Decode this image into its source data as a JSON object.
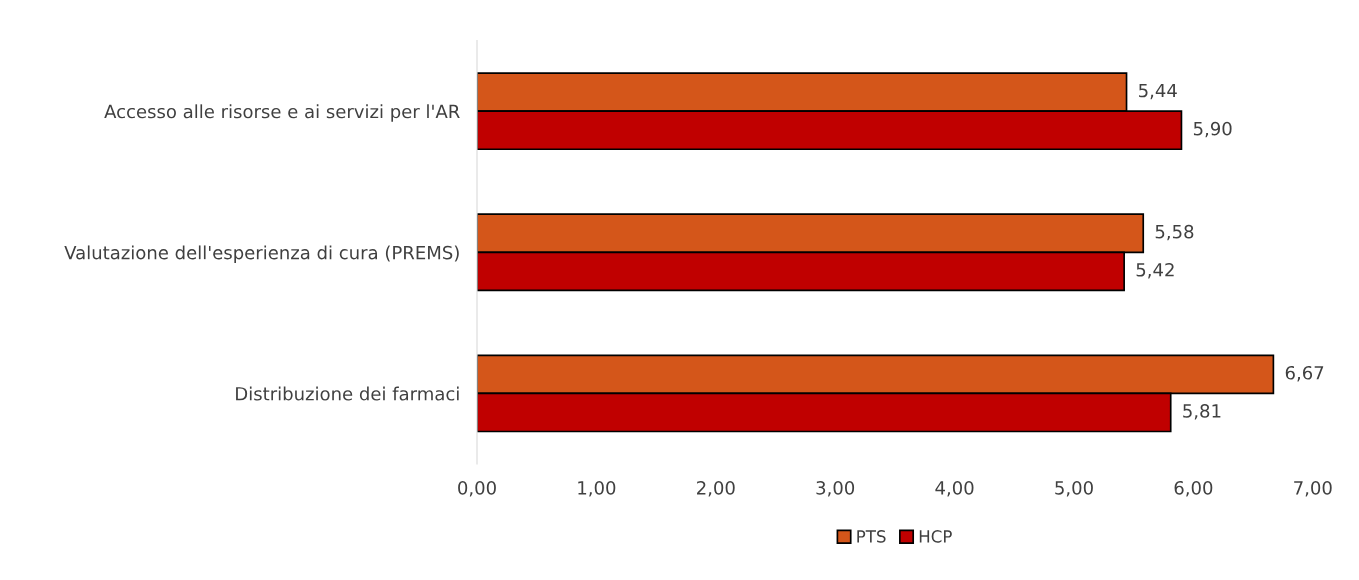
{
  "chart_data": {
    "type": "bar",
    "orientation": "horizontal",
    "categories": [
      "Accesso alle risorse e ai servizi per l'AR",
      "Valutazione dell'esperienza di cura (PREMS)",
      "Distribuzione dei farmaci"
    ],
    "series": [
      {
        "name": "PTS",
        "color": "#d4561a",
        "values": [
          5.44,
          5.58,
          6.67
        ],
        "value_labels": [
          "5,44",
          "5,58",
          "6,67"
        ]
      },
      {
        "name": "HCP",
        "color": "#c00000",
        "values": [
          5.9,
          5.42,
          5.81
        ],
        "value_labels": [
          "5,90",
          "5,42",
          "5,81"
        ]
      }
    ],
    "xlim": [
      0,
      7
    ],
    "xticks": [
      {
        "value": 0,
        "label": "0,00"
      },
      {
        "value": 1,
        "label": "1,00"
      },
      {
        "value": 2,
        "label": "2,00"
      },
      {
        "value": 3,
        "label": "3,00"
      },
      {
        "value": 4,
        "label": "4,00"
      },
      {
        "value": 5,
        "label": "5,00"
      },
      {
        "value": 6,
        "label": "6,00"
      },
      {
        "value": 7,
        "label": "7,00"
      }
    ],
    "grid": false,
    "legend": "bottom"
  }
}
